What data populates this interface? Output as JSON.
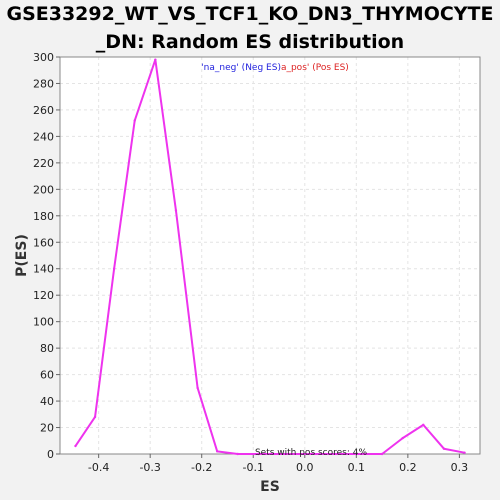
{
  "chart_data": {
    "type": "line",
    "title_line1": "GSE33292_WT_VS_TCF1_KO_DN3_THYMOCYTE",
    "title_line2": "_DN: Random ES distribution",
    "xlabel": "ES",
    "ylabel": "P(ES)",
    "xlim": [
      -0.475,
      0.34
    ],
    "ylim": [
      0,
      300
    ],
    "xticks": [
      "-0.4",
      "-0.3",
      "-0.2",
      "-0.1",
      "0.0",
      "0.1",
      "0.2",
      "0.3"
    ],
    "xtick_values": [
      -0.4,
      -0.3,
      -0.2,
      -0.1,
      0.0,
      0.1,
      0.2,
      0.3
    ],
    "yticks": [
      "0",
      "20",
      "40",
      "60",
      "80",
      "100",
      "120",
      "140",
      "160",
      "180",
      "200",
      "220",
      "240",
      "260",
      "280",
      "300"
    ],
    "ytick_values": [
      0,
      20,
      40,
      60,
      80,
      100,
      120,
      140,
      160,
      180,
      200,
      220,
      240,
      260,
      280,
      300
    ],
    "grid": true,
    "legend": {
      "placement": "top-center",
      "neg_label": "'na_neg' (Neg ES)",
      "pos_label": "a_pos' (Pos ES)",
      "neg_color": "#2222dd",
      "pos_color": "#dd2222"
    },
    "annotation": "Sets with pos scores: 4%",
    "line_color": "#ee33ee",
    "series": [
      {
        "x": [
          -0.445,
          -0.407,
          -0.37,
          -0.33,
          -0.29,
          -0.25,
          -0.208,
          -0.17,
          -0.13,
          -0.09,
          0.15,
          0.19,
          0.23,
          0.27,
          0.31
        ],
        "values": [
          6,
          28,
          140,
          252,
          298,
          184,
          50,
          2,
          0,
          0,
          0,
          12,
          22,
          4,
          1
        ]
      }
    ]
  }
}
